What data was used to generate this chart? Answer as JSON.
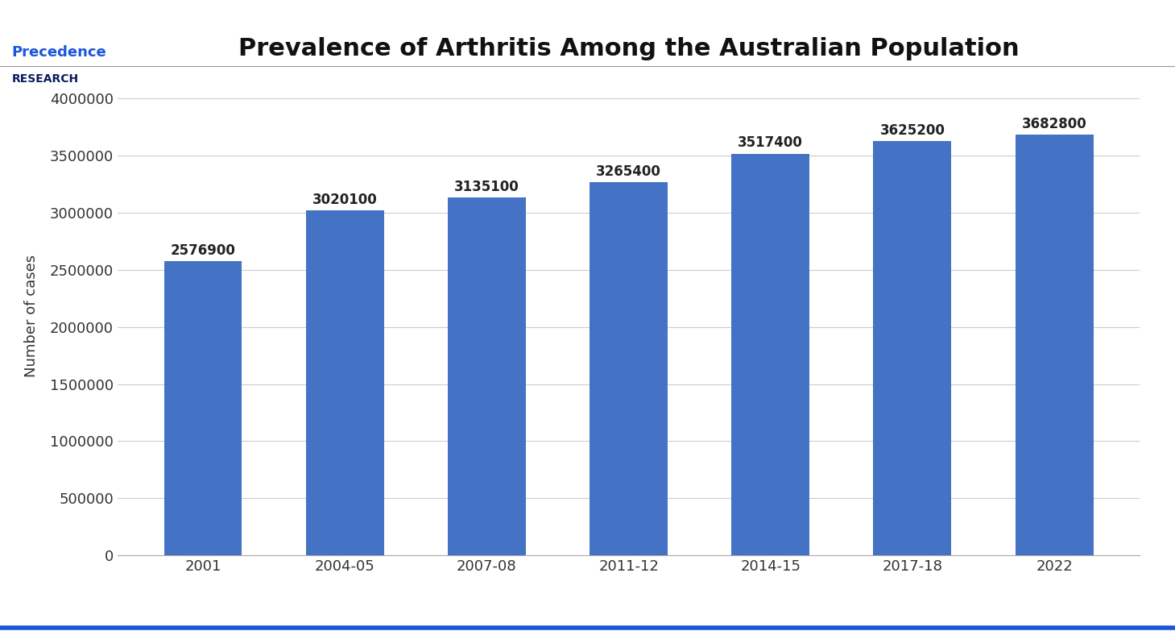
{
  "title": "Prevalence of Arthritis Among the Australian Population",
  "categories": [
    "2001",
    "2004-05",
    "2007-08",
    "2011-12",
    "2014-15",
    "2017-18",
    "2022"
  ],
  "values": [
    2576900,
    3020100,
    3135100,
    3265400,
    3517400,
    3625200,
    3682800
  ],
  "bar_color": "#4472C4",
  "ylabel": "Number of cases",
  "ylim": [
    0,
    4200000
  ],
  "yticks": [
    0,
    500000,
    1000000,
    1500000,
    2000000,
    2500000,
    3000000,
    3500000,
    4000000
  ],
  "title_fontsize": 22,
  "axis_label_fontsize": 13,
  "tick_fontsize": 13,
  "annotation_fontsize": 12,
  "bg_color": "#ffffff",
  "grid_color": "#cccccc",
  "bar_width": 0.55,
  "logo_text1": "Precedence",
  "logo_text2": "RESEARCH",
  "logo_color1": "#1a56db",
  "logo_color2": "#0d1b5e",
  "separator_color": "#999999",
  "bottom_line_color": "#1a56db"
}
